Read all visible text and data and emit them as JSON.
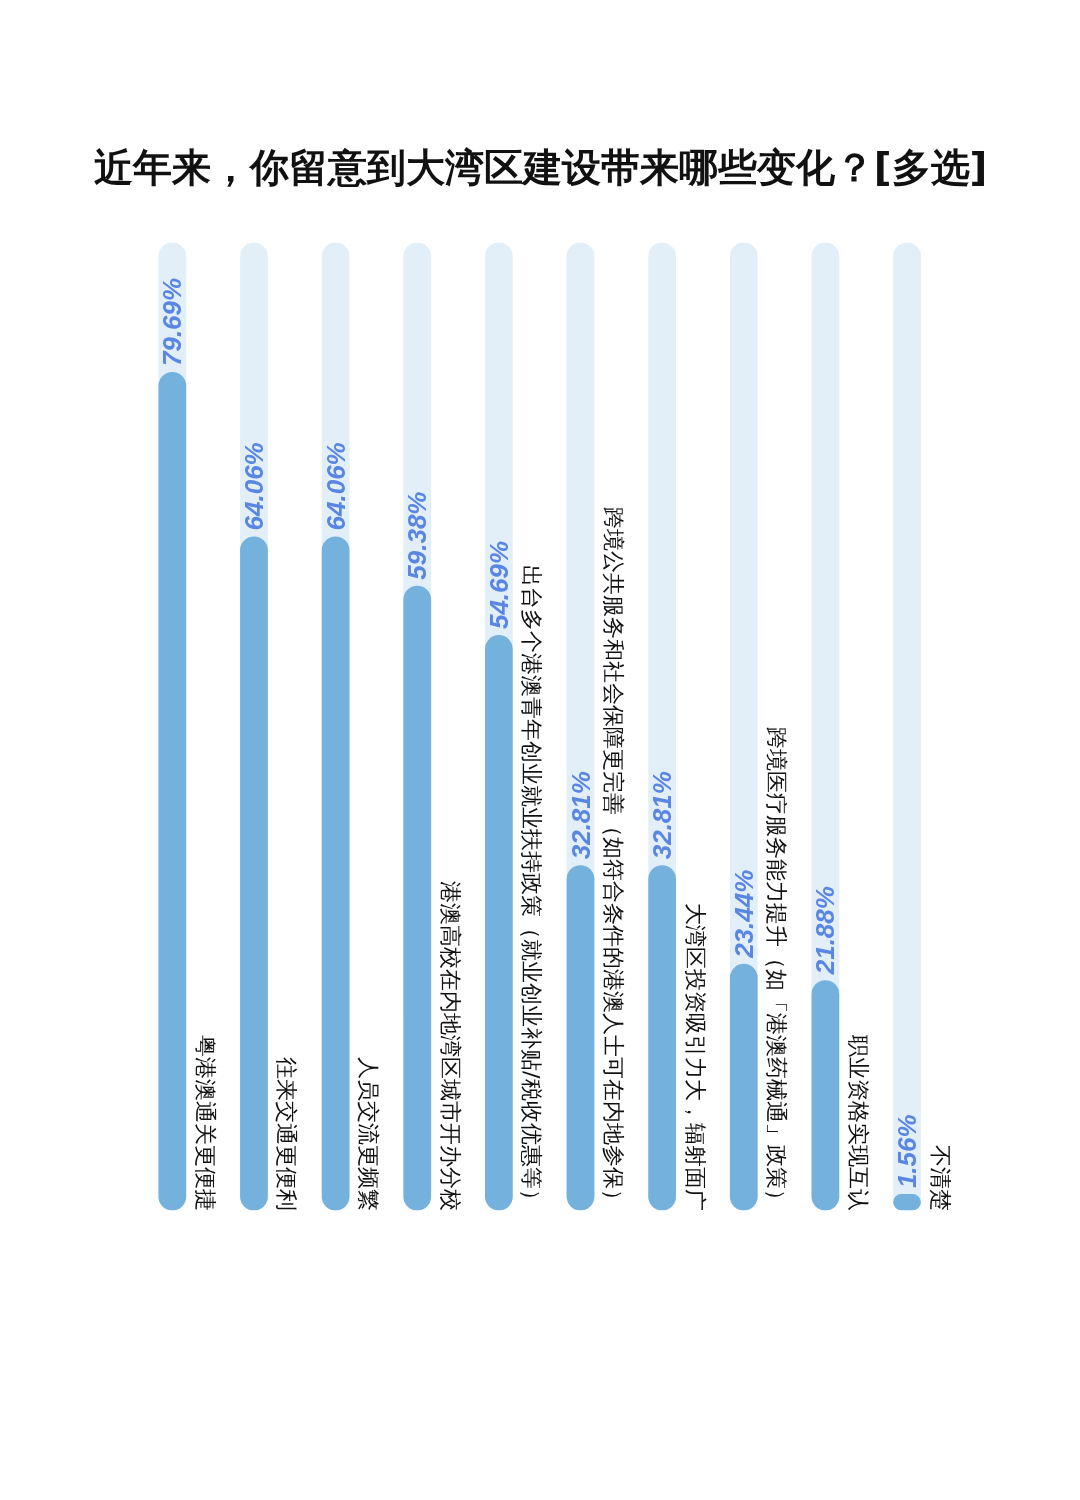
{
  "chart_data": {
    "type": "bar",
    "title": "近年来，你留意到大湾区建设带来哪些变化？[多选]",
    "categories": [
      "粤港澳通关更便捷",
      "往来交通更便利",
      "人员交流更频繁",
      "港澳高校在内地湾区城市开办分校",
      "出台多个港澳青年创业就业扶持政策（就业创业补贴/税收优惠等）",
      "跨境公共服务和社会保障更完善（如符合条件的港澳人士可在内地参保）",
      "大湾区投资吸引力大，辐射面广",
      "跨境医疗服务能力提升（如「港澳药械通」政策）",
      "职业资格实现互认",
      "不清楚"
    ],
    "values": [
      79.69,
      64.06,
      64.06,
      59.38,
      54.69,
      32.81,
      32.81,
      23.44,
      21.88,
      1.56
    ],
    "value_labels": [
      "79.69%",
      "64.06%",
      "64.06%",
      "59.38%",
      "54.69%",
      "32.81%",
      "32.81%",
      "23.44%",
      "21.88%",
      "1.56%"
    ],
    "color": "#74b1dd",
    "ylim": [
      0,
      92
    ],
    "tick_labels": false
  }
}
